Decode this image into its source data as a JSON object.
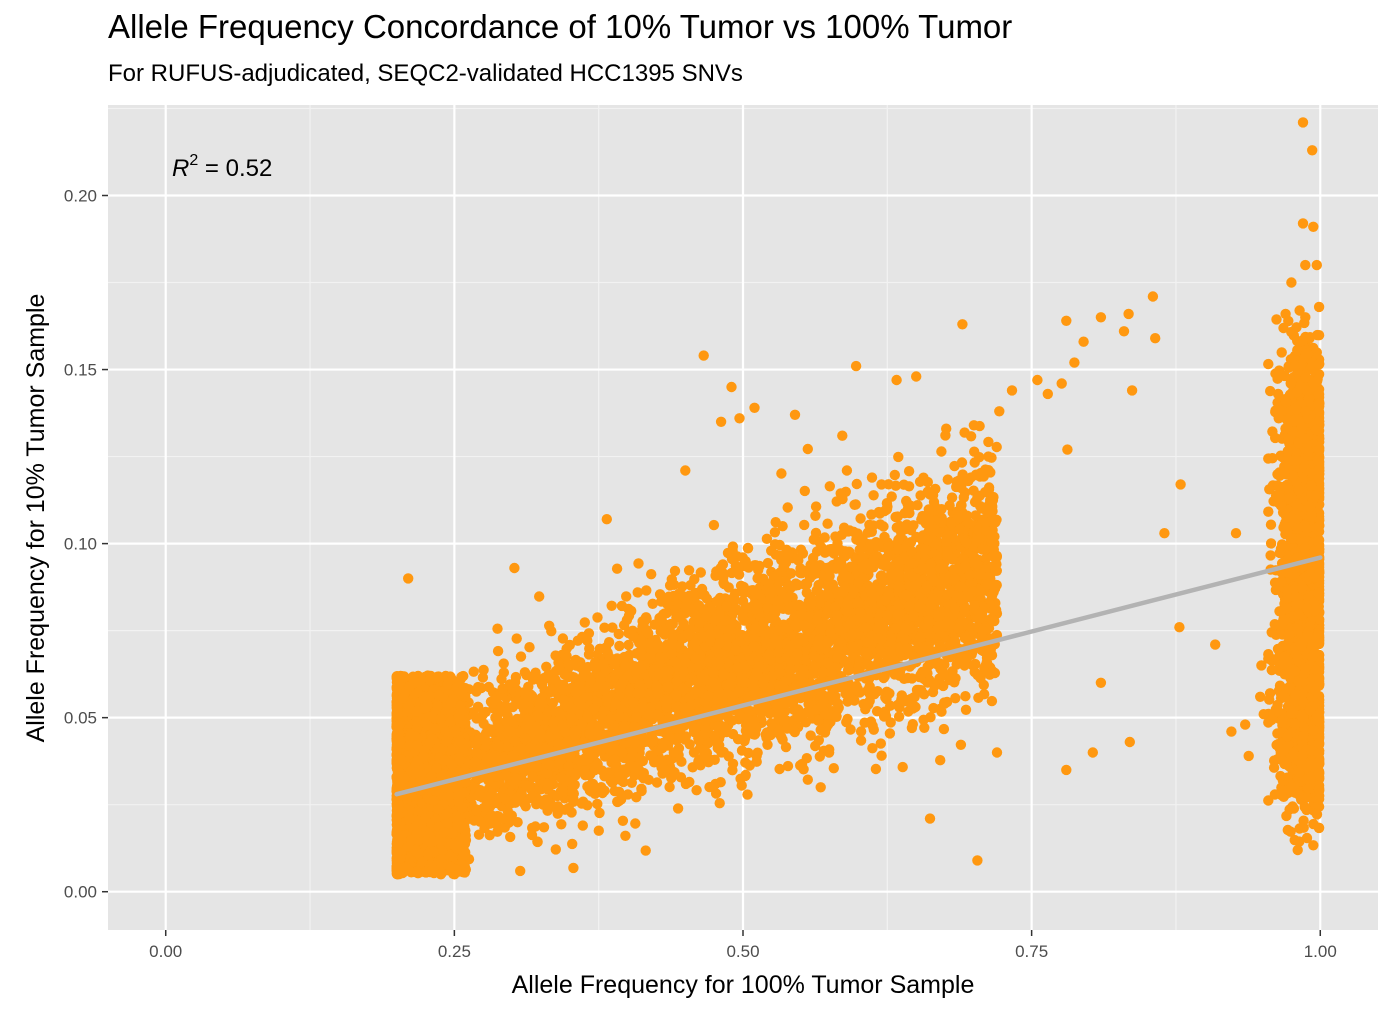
{
  "chart_data": {
    "type": "scatter",
    "title": "Allele Frequency Concordance of 10% Tumor vs 100% Tumor",
    "subtitle": "For RUFUS-adjudicated, SEQC2-validated HCC1395 SNVs",
    "xlabel": "Allele Frequency for 100% Tumor Sample",
    "ylabel": "Allele Frequency for 10% Tumor Sample",
    "xlim": [
      -0.05,
      1.05
    ],
    "ylim": [
      -0.011,
      0.226
    ],
    "x_ticks": [
      "0.00",
      "0.25",
      "0.50",
      "0.75",
      "1.00"
    ],
    "y_ticks": [
      "0.00",
      "0.05",
      "0.10",
      "0.15",
      "0.20"
    ],
    "grid": true,
    "annotation": {
      "r2_symbol": "R",
      "r2_exponent": "2",
      "r2_text": " = 0.52"
    },
    "point_color": "#ff9810",
    "line_color": "#b3b3b3",
    "panel_color": "#e5e5e5",
    "fit_line": {
      "x": [
        0.2,
        1.0
      ],
      "y": [
        0.028,
        0.096
      ]
    },
    "point_clusters": [
      {
        "name": "dense-main",
        "n": 5200,
        "x_range": [
          0.2,
          0.72
        ],
        "slope": 0.125,
        "intercept": 0.003,
        "sd": 0.0125
      },
      {
        "name": "dense-low",
        "n": 2400,
        "x_range": [
          0.2,
          0.26
        ],
        "y_range": [
          0.005,
          0.062
        ]
      },
      {
        "name": "near-one",
        "n": 1800,
        "x_center": 0.985,
        "x_sd": 0.011,
        "y_range": [
          0.03,
          0.15
        ]
      }
    ],
    "outliers": [
      [
        0.985,
        0.221
      ],
      [
        0.993,
        0.213
      ],
      [
        0.985,
        0.192
      ],
      [
        0.994,
        0.191
      ],
      [
        0.987,
        0.18
      ],
      [
        0.997,
        0.18
      ],
      [
        0.975,
        0.175
      ],
      [
        0.999,
        0.168
      ],
      [
        0.97,
        0.166
      ],
      [
        0.987,
        0.165
      ],
      [
        0.855,
        0.171
      ],
      [
        0.857,
        0.159
      ],
      [
        0.834,
        0.166
      ],
      [
        0.81,
        0.165
      ],
      [
        0.78,
        0.164
      ],
      [
        0.83,
        0.161
      ],
      [
        0.69,
        0.163
      ],
      [
        0.795,
        0.158
      ],
      [
        0.787,
        0.152
      ],
      [
        0.755,
        0.147
      ],
      [
        0.466,
        0.154
      ],
      [
        0.598,
        0.151
      ],
      [
        0.633,
        0.147
      ],
      [
        0.65,
        0.148
      ],
      [
        0.49,
        0.145
      ],
      [
        0.51,
        0.139
      ],
      [
        0.481,
        0.135
      ],
      [
        0.497,
        0.136
      ],
      [
        0.586,
        0.131
      ],
      [
        0.733,
        0.144
      ],
      [
        0.764,
        0.143
      ],
      [
        0.776,
        0.146
      ],
      [
        0.837,
        0.144
      ],
      [
        0.722,
        0.138
      ],
      [
        0.781,
        0.127
      ],
      [
        0.7,
        0.134
      ],
      [
        0.676,
        0.133
      ],
      [
        0.879,
        0.117
      ],
      [
        0.865,
        0.103
      ],
      [
        0.878,
        0.076
      ],
      [
        0.909,
        0.071
      ],
      [
        0.927,
        0.103
      ],
      [
        0.923,
        0.046
      ],
      [
        0.935,
        0.048
      ],
      [
        0.938,
        0.039
      ],
      [
        0.948,
        0.056
      ],
      [
        0.949,
        0.065
      ],
      [
        0.951,
        0.051
      ],
      [
        0.21,
        0.09
      ],
      [
        0.703,
        0.009
      ],
      [
        0.662,
        0.021
      ],
      [
        0.72,
        0.04
      ],
      [
        0.78,
        0.035
      ],
      [
        0.81,
        0.06
      ],
      [
        0.835,
        0.043
      ],
      [
        0.803,
        0.04
      ],
      [
        0.62,
        0.117
      ],
      [
        0.545,
        0.137
      ],
      [
        0.302,
        0.093
      ],
      [
        0.45,
        0.121
      ],
      [
        0.382,
        0.107
      ],
      [
        0.59,
        0.121
      ],
      [
        0.981,
        0.028
      ],
      [
        0.992,
        0.033
      ],
      [
        0.999,
        0.034
      ]
    ]
  }
}
